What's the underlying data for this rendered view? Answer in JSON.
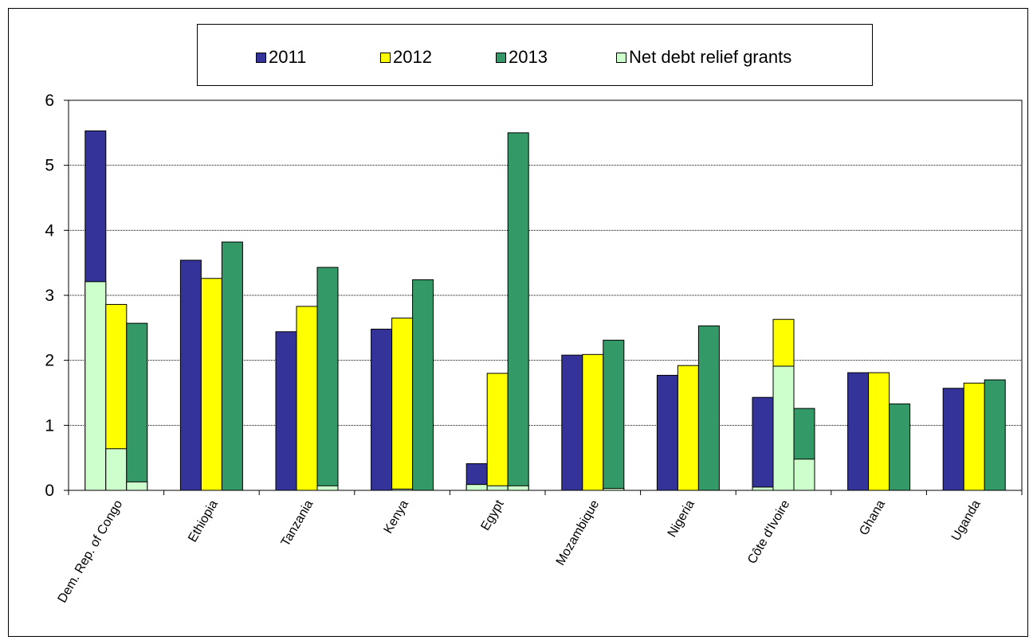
{
  "chart_data": {
    "type": "bar",
    "categories": [
      "Dem. Rep. of Congo",
      "Ethiopia",
      "Tanzania",
      "Kenya",
      "Egypt",
      "Mozambique",
      "Nigeria",
      "Côte d'Ivoire",
      "Ghana",
      "Uganda"
    ],
    "series": [
      {
        "name": "2011",
        "color": "#333399",
        "values": [
          5.53,
          3.54,
          2.44,
          2.48,
          0.41,
          2.08,
          1.77,
          1.43,
          1.81,
          1.57
        ],
        "net_debt_relief": [
          3.21,
          0,
          0,
          0,
          0.09,
          0,
          0,
          0.05,
          0,
          0
        ]
      },
      {
        "name": "2012",
        "color": "#ffff00",
        "values": [
          2.86,
          3.26,
          2.83,
          2.65,
          1.8,
          2.09,
          1.92,
          2.63,
          1.81,
          1.65
        ],
        "net_debt_relief": [
          0.64,
          0,
          0,
          0.02,
          0.07,
          0,
          0,
          1.91,
          0,
          0
        ]
      },
      {
        "name": "2013",
        "color": "#339966",
        "values": [
          2.57,
          3.82,
          3.43,
          3.24,
          5.5,
          2.31,
          2.53,
          1.26,
          1.33,
          1.7
        ],
        "net_debt_relief": [
          0.13,
          0,
          0.07,
          0,
          0.07,
          0.03,
          0,
          0.48,
          0,
          0
        ]
      }
    ],
    "stack_series": {
      "name": "Net debt relief grants",
      "color": "#ccffcc"
    },
    "ylim": [
      0,
      6
    ],
    "yticks": [
      0,
      1,
      2,
      3,
      4,
      5,
      6
    ],
    "grid": true,
    "legend_position": "top"
  }
}
